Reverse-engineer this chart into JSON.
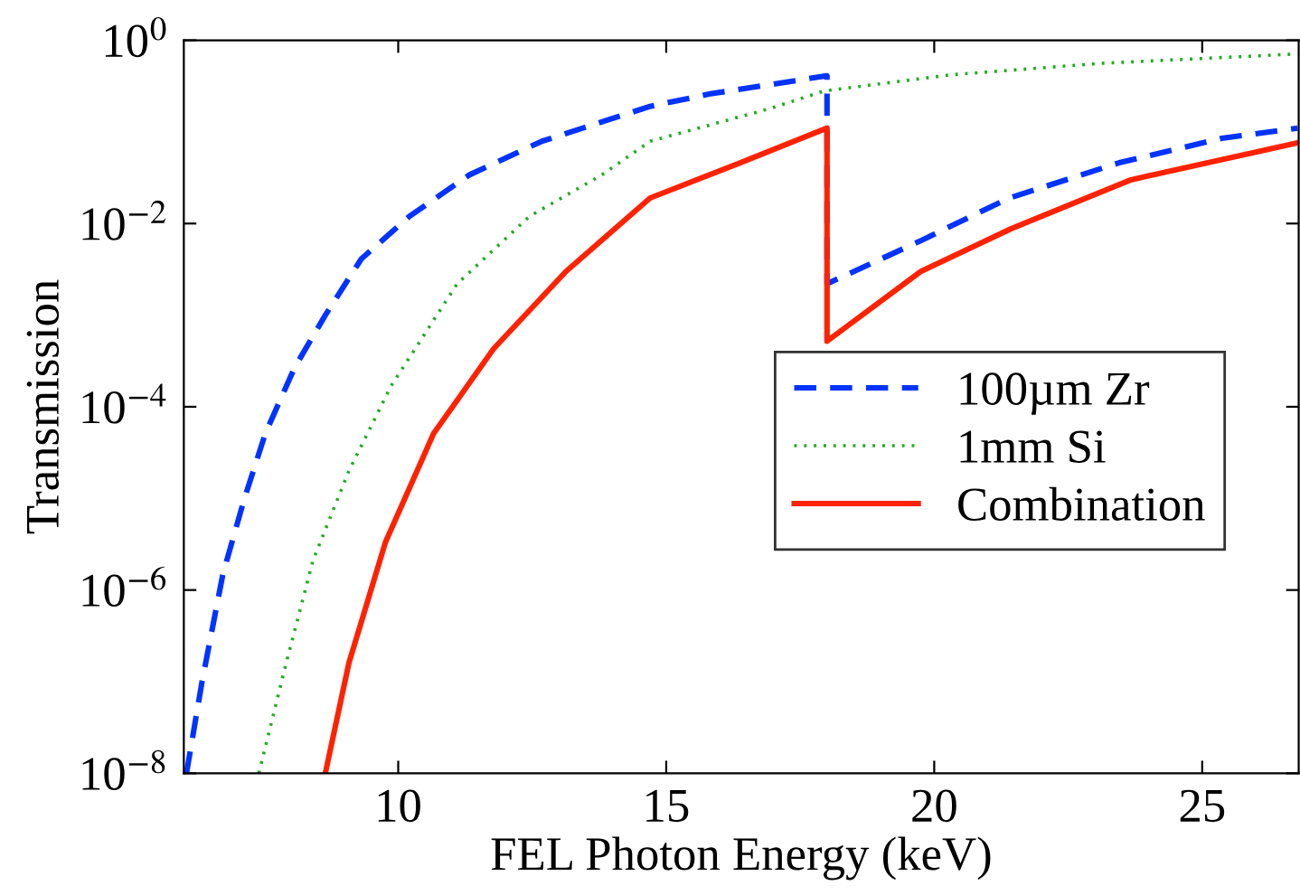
{
  "chart_data": {
    "type": "line",
    "xlabel": "FEL Photon Energy (keV)",
    "ylabel": "Transmission",
    "log": "y",
    "xlim": [
      6,
      26.8
    ],
    "xticks": [
      10,
      15,
      20,
      25
    ],
    "ylim": [
      1e-08,
      1
    ],
    "yticks": [
      {
        "value": 1e-08,
        "label": "10$^{−8}$"
      },
      {
        "value": 1e-06,
        "label": "10$^{−6}$"
      },
      {
        "value": 0.0001,
        "label": "10$^{−4}$"
      },
      {
        "value": 0.01,
        "label": "10$^{−2}$"
      },
      {
        "value": 1,
        "label": "10$^{0}$"
      }
    ],
    "grid": false,
    "legend": "center right",
    "series": [
      {
        "name": "100µm Zr",
        "color": "#0033ff",
        "line_style": "dashed",
        "x": [
          6.05,
          6.34,
          6.73,
          7.12,
          7.52,
          8.07,
          8.64,
          9.31,
          10.21,
          11.33,
          12.68,
          14.7,
          15.82,
          18.0,
          18.0,
          19.75,
          21.4,
          23.45,
          25.36,
          26.78
        ],
        "values": [
          1e-08,
          1e-07,
          1.5e-06,
          9.5e-06,
          5.1e-05,
          0.00027,
          0.001,
          0.0041,
          0.012,
          0.034,
          0.079,
          0.19,
          0.26,
          0.41,
          0.0022,
          0.0065,
          0.019,
          0.046,
          0.085,
          0.11
        ]
      },
      {
        "name": "1mm Si",
        "color": "#22aa22",
        "line_style": "dotted",
        "x": [
          7.4,
          7.91,
          8.41,
          9.08,
          9.87,
          11.1,
          12.45,
          13.8,
          14.7,
          16.94,
          17.95,
          20.31,
          23.11,
          26.78
        ],
        "values": [
          1e-08,
          1.6e-07,
          2.1e-06,
          2e-05,
          0.00017,
          0.0022,
          0.012,
          0.034,
          0.079,
          0.18,
          0.28,
          0.42,
          0.56,
          0.71
        ]
      },
      {
        "name": "Combination",
        "color": "#ff2200",
        "line_style": "solid",
        "x": [
          8.64,
          9.08,
          9.76,
          10.66,
          11.78,
          13.13,
          14.7,
          16.38,
          18.0,
          18.0,
          19.75,
          21.42,
          23.67,
          26.78
        ],
        "values": [
          1e-08,
          1.6e-07,
          3.3e-06,
          5.1e-05,
          0.00043,
          0.003,
          0.019,
          0.046,
          0.11,
          0.00052,
          0.003,
          0.0087,
          0.03,
          0.076
        ]
      }
    ]
  }
}
